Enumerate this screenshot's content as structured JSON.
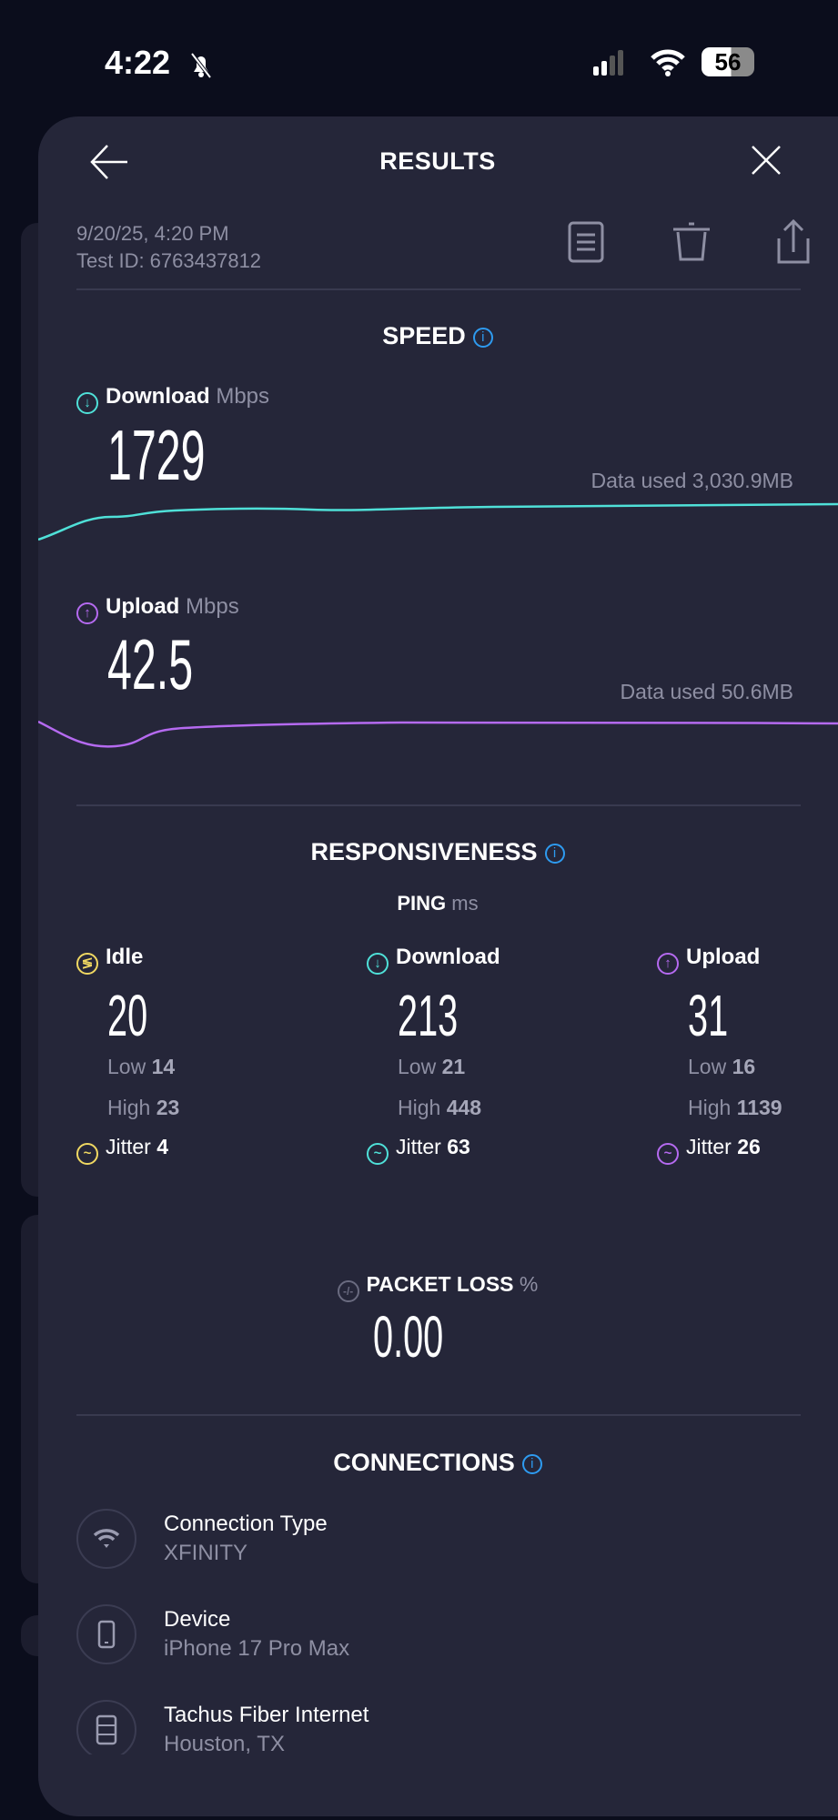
{
  "status_bar": {
    "time": "4:22",
    "battery": "56",
    "icons": [
      "bell-slash-icon",
      "signal-icon",
      "wifi-icon",
      "battery-icon"
    ]
  },
  "header": {
    "title": "RESULTS",
    "icons": [
      "back-arrow-icon",
      "close-icon"
    ]
  },
  "meta": {
    "datetime": "9/20/25, 4:20 PM",
    "test_id": "Test ID: 6763437812",
    "actions": [
      "report-icon",
      "trash-icon",
      "share-icon"
    ]
  },
  "speed": {
    "title": "SPEED",
    "download": {
      "label": "Download",
      "unit": "Mbps",
      "value": "1729",
      "data_used": "Data used 3,030.9MB",
      "color": "#4fe0d8"
    },
    "upload": {
      "label": "Upload",
      "unit": "Mbps",
      "value": "42.5",
      "data_used": "Data used 50.6MB",
      "color": "#b56af0"
    }
  },
  "responsiveness": {
    "title": "RESPONSIVENESS",
    "ping_label": "PING",
    "ping_unit": "ms",
    "columns": [
      {
        "label": "Idle",
        "value": "20",
        "low_label": "Low",
        "low": "14",
        "high_label": "High",
        "high": "23",
        "jitter_label": "Jitter",
        "jitter": "4",
        "color": "#f0d862"
      },
      {
        "label": "Download",
        "value": "213",
        "low_label": "Low",
        "low": "21",
        "high_label": "High",
        "high": "448",
        "jitter_label": "Jitter",
        "jitter": "63",
        "color": "#4fe0d8"
      },
      {
        "label": "Upload",
        "value": "31",
        "low_label": "Low",
        "low": "16",
        "high_label": "High",
        "high": "1139",
        "jitter_label": "Jitter",
        "jitter": "26",
        "color": "#b56af0"
      }
    ]
  },
  "packet_loss": {
    "label": "PACKET LOSS",
    "unit": "%",
    "value": "0.00"
  },
  "connections": {
    "title": "CONNECTIONS",
    "items": [
      {
        "title": "Connection Type",
        "subtitle": "XFINITY",
        "icon": "wifi-icon"
      },
      {
        "title": "Device",
        "subtitle": "iPhone 17 Pro Max",
        "icon": "phone-icon"
      },
      {
        "title": "Tachus Fiber Internet",
        "subtitle": "Houston, TX",
        "icon": "server-icon"
      }
    ]
  }
}
